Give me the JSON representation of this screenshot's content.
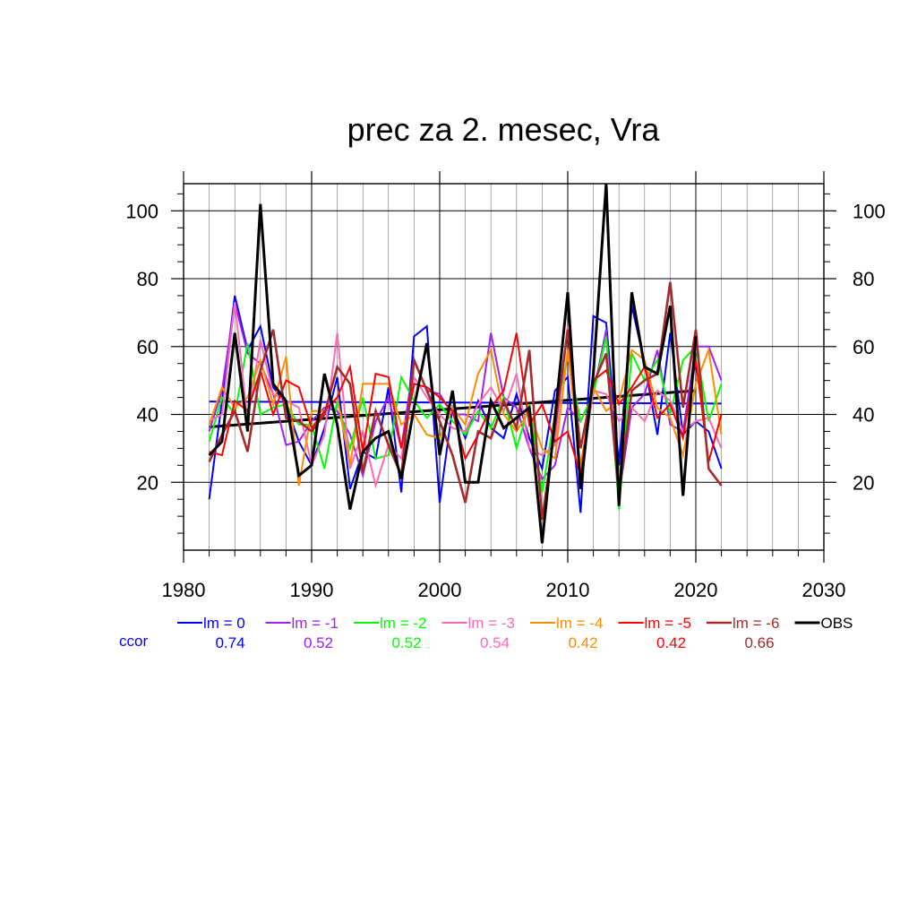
{
  "chart_data": {
    "type": "line",
    "title": "prec za 2. mesec, Vra",
    "xlabel": "",
    "ylabel": "",
    "xlim": [
      1980,
      2030
    ],
    "ylim": [
      0,
      108
    ],
    "x_ticks": [
      1980,
      1990,
      2000,
      2010,
      2020,
      2030
    ],
    "y_ticks": [
      20,
      40,
      60,
      80,
      100
    ],
    "x_tick_labels": [
      "1980",
      "1990",
      "2000",
      "2010",
      "2020",
      "2030"
    ],
    "y_tick_labels": [
      "20",
      "40",
      "60",
      "80",
      "100"
    ],
    "grid": true,
    "legend_position": "bottom",
    "ccor_label": "ccor",
    "years": [
      1982,
      1983,
      1984,
      1985,
      1986,
      1987,
      1988,
      1989,
      1990,
      1991,
      1992,
      1993,
      1994,
      1995,
      1996,
      1997,
      1998,
      1999,
      2000,
      2001,
      2002,
      2003,
      2004,
      2005,
      2006,
      2007,
      2008,
      2009,
      2010,
      2011,
      2012,
      2013,
      2014,
      2015,
      2016,
      2017,
      2018,
      2019,
      2020,
      2021,
      2022
    ],
    "series": [
      {
        "name": "lm = 0",
        "ccor": "0.74",
        "color": "#0000ff",
        "width": 2,
        "values": [
          15,
          44,
          75,
          59,
          66,
          48,
          43,
          32,
          25,
          36,
          51,
          18,
          29,
          27,
          48,
          17,
          63,
          66,
          14,
          42,
          33,
          44,
          36,
          33,
          46,
          33,
          24,
          47,
          51,
          11,
          69,
          67,
          25,
          72,
          55,
          34,
          64,
          34,
          38,
          35,
          24
        ]
      },
      {
        "name": "lm = -1",
        "ccor": "0.52",
        "color": "#a020f0",
        "width": 2,
        "values": [
          35,
          47,
          73,
          58,
          55,
          46,
          31,
          32,
          38,
          42,
          41,
          34,
          22,
          38,
          45,
          30,
          56,
          47,
          46,
          40,
          40,
          38,
          64,
          45,
          42,
          30,
          21,
          25,
          42,
          38,
          46,
          65,
          16,
          42,
          46,
          59,
          37,
          35,
          60,
          60,
          50
        ]
      },
      {
        "name": "lm = -2",
        "ccor": "0.52",
        "color": "#00ff00",
        "width": 2,
        "values": [
          32,
          45,
          40,
          61,
          40,
          42,
          43,
          37,
          37,
          24,
          44,
          30,
          45,
          27,
          28,
          51,
          44,
          39,
          43,
          38,
          34,
          41,
          36,
          45,
          30,
          43,
          17,
          40,
          57,
          38,
          46,
          63,
          12,
          58,
          50,
          56,
          40,
          56,
          60,
          38,
          49
        ]
      },
      {
        "name": "lm = -3",
        "ccor": "0.54",
        "color": "#ff69b4",
        "width": 2,
        "values": [
          38,
          40,
          73,
          38,
          62,
          46,
          44,
          42,
          25,
          34,
          64,
          24,
          35,
          19,
          31,
          27,
          51,
          45,
          40,
          36,
          35,
          43,
          48,
          41,
          52,
          30,
          28,
          31,
          66,
          21,
          47,
          46,
          38,
          42,
          38,
          47,
          44,
          35,
          38,
          39,
          30
        ]
      },
      {
        "name": "lm = -4",
        "ccor": "0.42",
        "color": "#ff8c00",
        "width": 2,
        "values": [
          37,
          48,
          42,
          45,
          56,
          43,
          57,
          19,
          41,
          41,
          45,
          25,
          49,
          49,
          49,
          37,
          40,
          34,
          33,
          42,
          37,
          52,
          59,
          40,
          35,
          41,
          30,
          27,
          59,
          25,
          48,
          41,
          44,
          59,
          56,
          42,
          39,
          28,
          49,
          59,
          34
        ]
      },
      {
        "name": "lm = -5",
        "ccor": "0.42",
        "color": "#ff0000",
        "width": 2,
        "values": [
          29,
          28,
          44,
          41,
          53,
          40,
          50,
          48,
          36,
          41,
          45,
          54,
          29,
          52,
          51,
          30,
          49,
          48,
          45,
          41,
          27,
          34,
          42,
          47,
          64,
          37,
          43,
          32,
          35,
          22,
          50,
          53,
          43,
          48,
          54,
          39,
          43,
          33,
          56,
          26,
          40
        ]
      },
      {
        "name": "lm = -6",
        "ccor": "0.66",
        "color": "#a52a2a",
        "width": 2.6,
        "values": [
          26,
          34,
          41,
          29,
          53,
          65,
          39,
          38,
          35,
          40,
          54,
          49,
          23,
          41,
          31,
          22,
          56,
          47,
          38,
          28,
          14,
          35,
          33,
          44,
          36,
          59,
          9,
          36,
          65,
          30,
          49,
          58,
          16,
          47,
          50,
          52,
          79,
          42,
          65,
          24,
          19
        ]
      },
      {
        "name": "OBS",
        "ccor": "",
        "color": "#000000",
        "width": 3,
        "values": [
          28,
          32,
          64,
          35,
          102,
          49,
          44,
          22,
          25,
          52,
          37,
          12,
          29,
          33,
          35,
          21,
          42,
          61,
          28,
          47,
          20,
          20,
          44,
          36,
          39,
          42,
          2,
          39,
          76,
          18,
          52,
          108,
          13,
          76,
          54,
          52,
          72,
          16,
          63,
          null,
          null
        ]
      }
    ],
    "reference_lines": [
      {
        "series": "lm = 0",
        "color": "#0000ff",
        "x": [
          1982,
          2022
        ],
        "y": [
          43.8,
          43.2
        ],
        "width": 2
      },
      {
        "series": "OBS",
        "color": "#000000",
        "x": [
          1982,
          2020
        ],
        "y": [
          36.3,
          47
        ],
        "width": 3
      }
    ]
  }
}
